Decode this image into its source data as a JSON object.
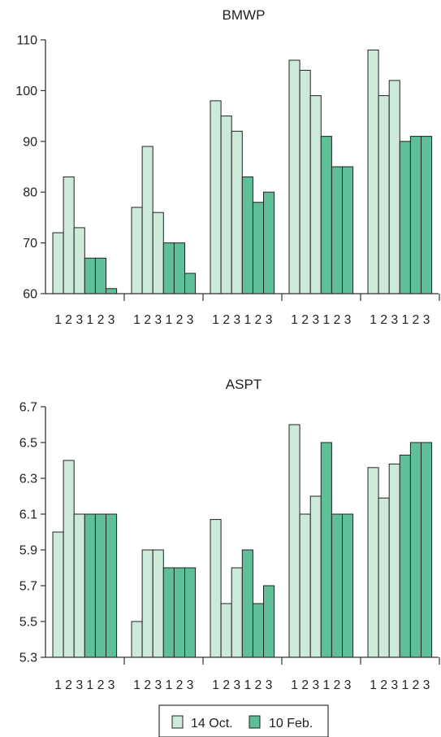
{
  "colors": {
    "oct": "#cde9d9",
    "feb": "#5fbf98",
    "stroke": "#222222",
    "axis": "#333333"
  },
  "legend": {
    "items": [
      {
        "label": "14 Oct.",
        "color_key": "oct"
      },
      {
        "label": "10 Feb.",
        "color_key": "feb"
      }
    ]
  },
  "chart_data": [
    {
      "type": "bar",
      "title": "BMWP",
      "xlabel": "",
      "ylabel": "",
      "ylim": [
        60,
        110
      ],
      "yticks": [
        "60",
        "70",
        "80",
        "90",
        "100",
        "110"
      ],
      "group_count": 5,
      "categories": [
        "1",
        "2",
        "3",
        "1",
        "2",
        "3"
      ],
      "series": [
        {
          "name": "14 Oct.",
          "values": [
            [
              72,
              83,
              73
            ],
            [
              77,
              89,
              76
            ],
            [
              98,
              95,
              92
            ],
            [
              106,
              104,
              99
            ],
            [
              108,
              99,
              102
            ]
          ]
        },
        {
          "name": "10 Feb.",
          "values": [
            [
              67,
              67,
              61
            ],
            [
              70,
              70,
              64
            ],
            [
              83,
              78,
              80
            ],
            [
              91,
              85,
              85
            ],
            [
              90,
              91,
              91
            ]
          ]
        }
      ]
    },
    {
      "type": "bar",
      "title": "ASPT",
      "xlabel": "",
      "ylabel": "",
      "ylim": [
        5.3,
        6.7
      ],
      "yticks": [
        "5.3",
        "5.5",
        "5.7",
        "5.9",
        "6.1",
        "6.3",
        "6.5",
        "6.7"
      ],
      "group_count": 5,
      "categories": [
        "1",
        "2",
        "3",
        "1",
        "2",
        "3"
      ],
      "series": [
        {
          "name": "14 Oct.",
          "values": [
            [
              6.0,
              6.4,
              6.1
            ],
            [
              5.5,
              5.9,
              5.9
            ],
            [
              6.07,
              5.6,
              5.8
            ],
            [
              6.6,
              6.1,
              6.2
            ],
            [
              6.36,
              6.19,
              6.38
            ]
          ]
        },
        {
          "name": "10 Feb.",
          "values": [
            [
              6.1,
              6.1,
              6.1
            ],
            [
              5.8,
              5.8,
              5.8
            ],
            [
              5.9,
              5.6,
              5.7
            ],
            [
              6.5,
              6.1,
              6.1
            ],
            [
              6.43,
              6.5,
              6.5
            ]
          ]
        }
      ]
    }
  ]
}
